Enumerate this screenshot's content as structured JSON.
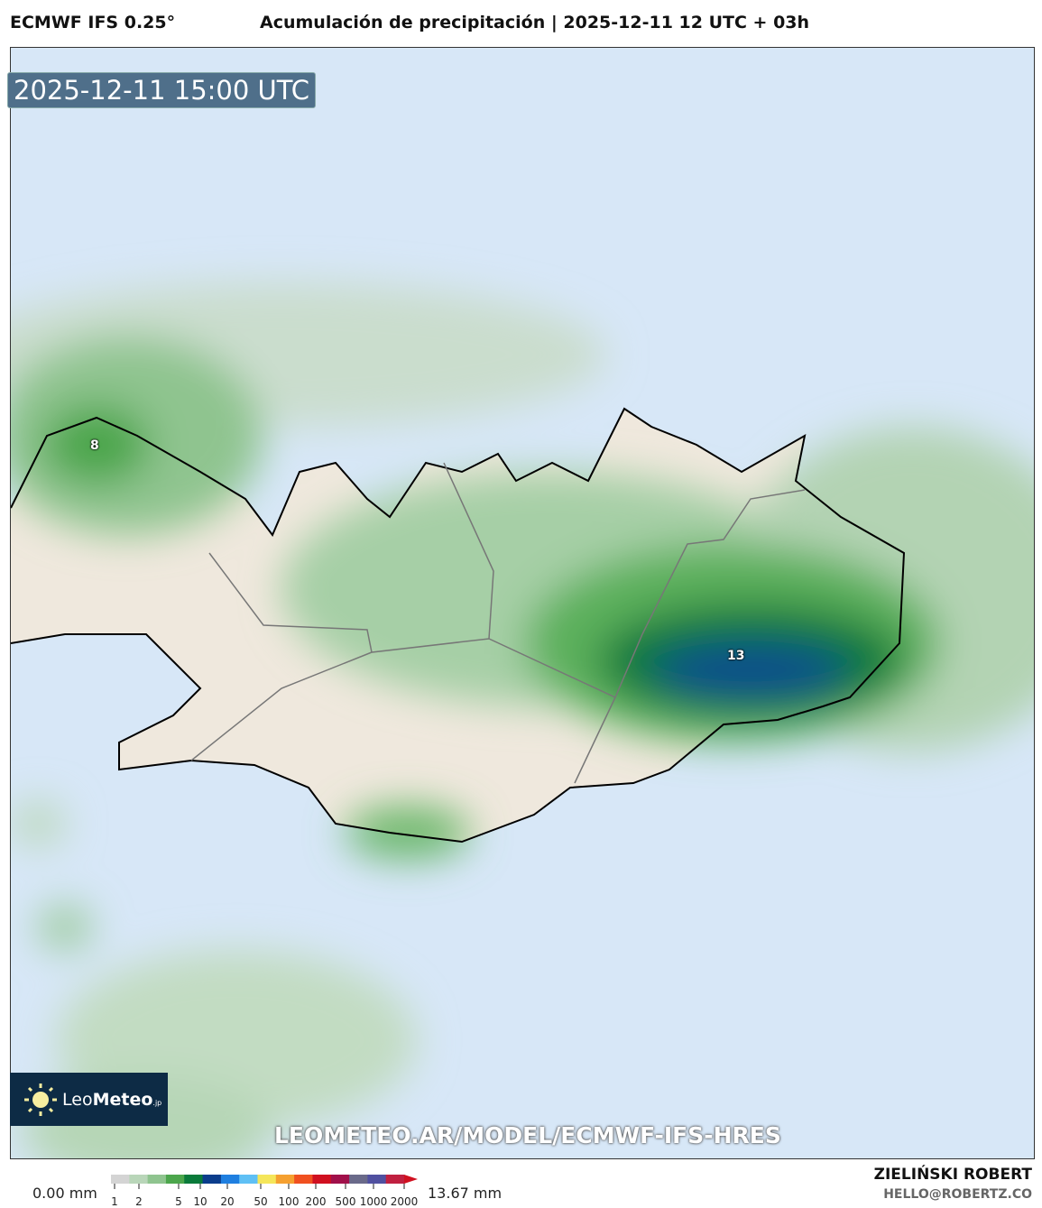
{
  "header": {
    "model": "ECMWF IFS 0.25°",
    "title": "Acumulación de precipitación | 2025-12-11 12 UTC + 03h"
  },
  "map": {
    "valid_time": "2025-12-11 15:00 UTC",
    "point_labels": [
      "8",
      "13"
    ],
    "watermark_url": "LEOMETEO.AR/MODEL/ECMWF-IFS-HRES",
    "colors": {
      "sea": "#d7e7f7",
      "land": "#efe8dd",
      "coast": "#000000"
    }
  },
  "logo": {
    "name_light": "Leo",
    "name_bold": "Meteo",
    "suffix": ".jp",
    "icon": "sun-icon"
  },
  "colorbar": {
    "min_label": "0.00 mm",
    "max_label": "13.67 mm",
    "ticks": [
      "1",
      "2",
      "5",
      "10",
      "20",
      "50",
      "100",
      "200",
      "500",
      "1000",
      "2000"
    ],
    "colors": [
      "#d4d4d4",
      "#b9d6b9",
      "#8fc48f",
      "#4ca64c",
      "#0a7a3a",
      "#0b3d8c",
      "#1f7fe0",
      "#5fc0f5",
      "#f5e65a",
      "#f5a030",
      "#f05020",
      "#d01020",
      "#a0104a",
      "#6a6a8a",
      "#5050a0",
      "#c02040"
    ]
  },
  "author": {
    "name": "ZIELIŃSKI ROBERT",
    "email": "HELLO@ROBERTZ.CO"
  }
}
